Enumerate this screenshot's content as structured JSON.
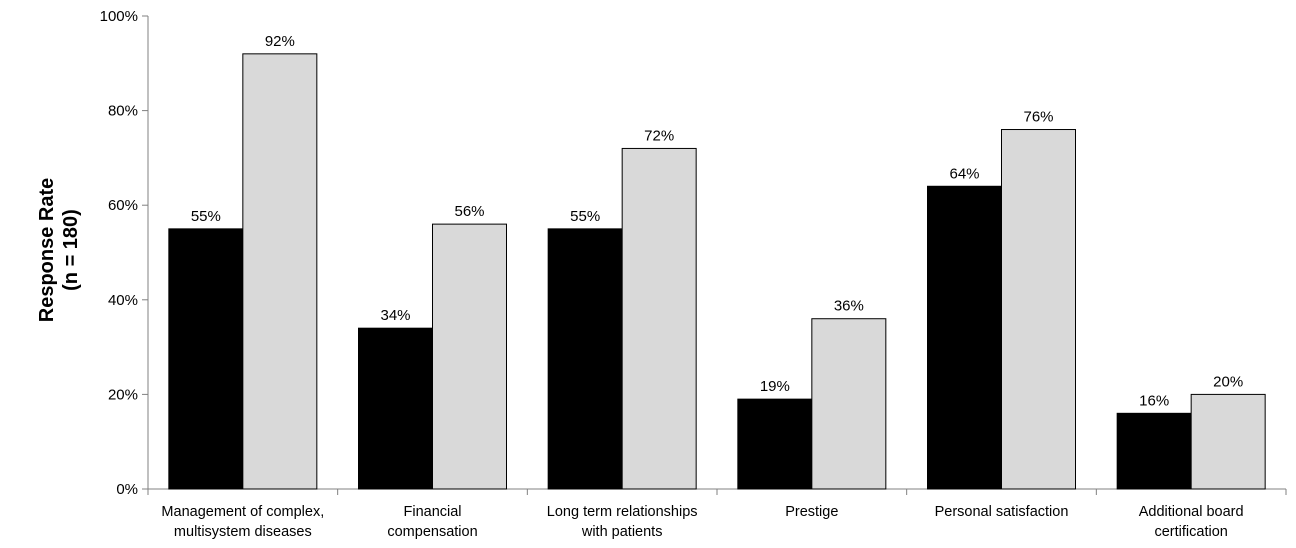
{
  "chart_data": {
    "type": "bar",
    "title": "",
    "xlabel": "",
    "ylabel": [
      "Response Rate",
      "(n = 180)"
    ],
    "ylim": [
      0,
      100
    ],
    "yticks": [
      0,
      20,
      40,
      60,
      80,
      100
    ],
    "ytick_labels": [
      "0%",
      "20%",
      "40%",
      "60%",
      "80%",
      "100%"
    ],
    "grid": false,
    "legend": "none",
    "categories": [
      [
        "Management of complex,",
        "multisystem diseases"
      ],
      [
        "Financial",
        "compensation"
      ],
      [
        "Long term relationships",
        "with patients"
      ],
      [
        "Prestige"
      ],
      [
        "Personal satisfaction"
      ],
      [
        "Additional board",
        "certification"
      ]
    ],
    "series": [
      {
        "color": "#000000",
        "values": [
          55,
          34,
          55,
          19,
          64,
          16
        ],
        "labels": [
          "55%",
          "34%",
          "55%",
          "19%",
          "64%",
          "16%"
        ]
      },
      {
        "color": "#d9d9d9",
        "values": [
          92,
          56,
          72,
          36,
          76,
          20
        ],
        "labels": [
          "92%",
          "56%",
          "72%",
          "36%",
          "76%",
          "20%"
        ]
      }
    ]
  }
}
